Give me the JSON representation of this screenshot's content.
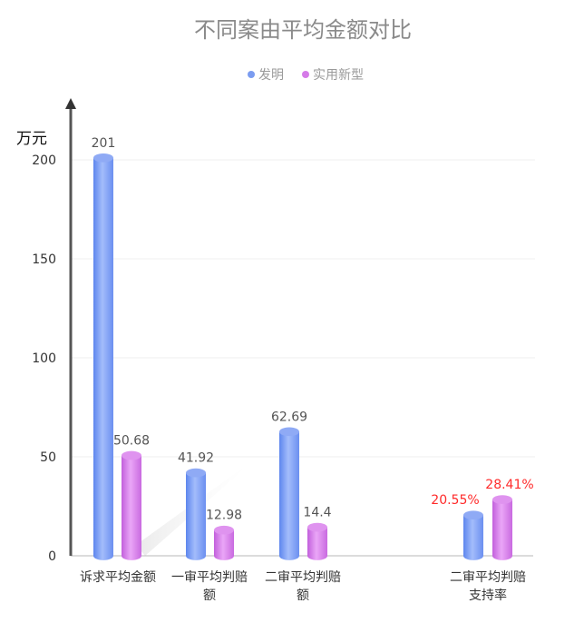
{
  "chart_data": {
    "type": "bar",
    "title": "不同案由平均金额对比",
    "ylabel": "万元",
    "xlabel": "",
    "ylim": [
      0,
      200
    ],
    "yticks": [
      0,
      50,
      100,
      150,
      200
    ],
    "grid": true,
    "legend_position": "top-center",
    "categories": [
      [
        "诉求平均金额"
      ],
      [
        "一审平均判赔",
        "额"
      ],
      [
        "二审平均判赔",
        "额"
      ],
      [
        "二审平均判赔",
        "支持率"
      ]
    ],
    "series": [
      {
        "name": "发明",
        "color": "#7b9cf0",
        "values": [
          201,
          41.92,
          62.69,
          20.55
        ],
        "labels": [
          "201",
          "41.92",
          "62.69",
          "20.55%"
        ]
      },
      {
        "name": "实用新型",
        "color": "#d57be8",
        "values": [
          50.68,
          12.98,
          14.4,
          28.41
        ],
        "labels": [
          "50.68",
          "12.98",
          "14.4",
          "28.41%"
        ]
      }
    ],
    "label_colors": [
      "#555555",
      "#555555",
      "#555555",
      "#ff2a2a"
    ]
  }
}
